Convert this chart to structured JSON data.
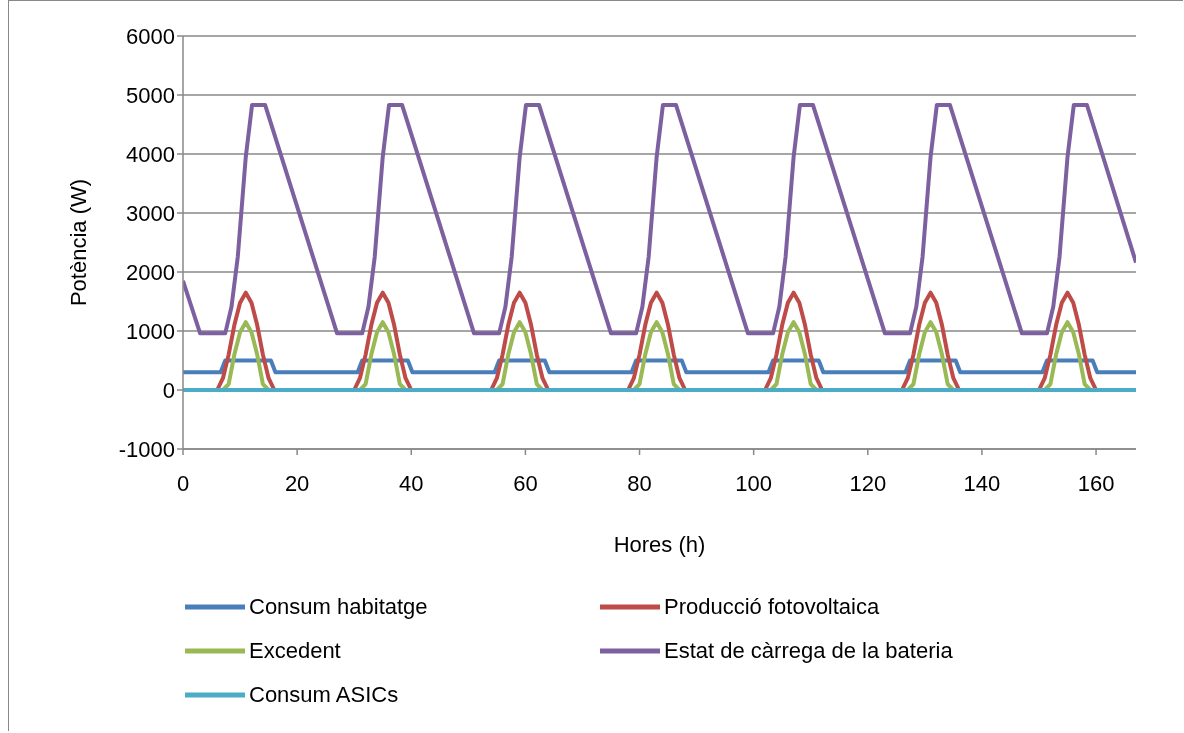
{
  "chart_data": {
    "type": "line",
    "xlabel": "Hores (h)",
    "ylabel": "Potència (W)",
    "xlim": [
      0,
      167
    ],
    "xticks": [
      0,
      20,
      40,
      60,
      80,
      100,
      120,
      140,
      160
    ],
    "ylim": [
      -1000,
      6000
    ],
    "yticks": [
      -1000,
      0,
      1000,
      2000,
      3000,
      4000,
      5000,
      6000
    ],
    "grid": "y",
    "legend": "bottom",
    "series": [
      {
        "name": "Consum habitatge",
        "color": "#4a7ebb",
        "x": [
          0,
          6.6,
          7.4,
          15.4,
          16.2,
          30.6,
          31.4,
          39.4,
          40.2,
          54.6,
          55.4,
          63.4,
          64.2,
          78.6,
          79.4,
          87.4,
          88.2,
          102.6,
          103.4,
          111.4,
          112.2,
          126.6,
          127.4,
          135.4,
          136.2,
          150.6,
          151.4,
          159.4,
          160.2,
          167
        ],
        "values": [
          300,
          300,
          500,
          500,
          300,
          300,
          500,
          500,
          300,
          300,
          500,
          500,
          300,
          300,
          500,
          500,
          300,
          300,
          500,
          500,
          300,
          300,
          500,
          500,
          300,
          300,
          500,
          500,
          300,
          300
        ]
      },
      {
        "name": "Producció fotovoltaica",
        "color": "#be4b48",
        "x": [
          0,
          6,
          7,
          8,
          9,
          10,
          11,
          12,
          13,
          14,
          15,
          16,
          30,
          31,
          32,
          33,
          34,
          35,
          36,
          37,
          38,
          39,
          40,
          54,
          55,
          56,
          57,
          58,
          59,
          60,
          61,
          62,
          63,
          64,
          78,
          79,
          80,
          81,
          82,
          83,
          84,
          85,
          86,
          87,
          88,
          102,
          103,
          104,
          105,
          106,
          107,
          108,
          109,
          110,
          111,
          112,
          126,
          127,
          128,
          129,
          130,
          131,
          132,
          133,
          134,
          135,
          136,
          150,
          151,
          152,
          153,
          154,
          155,
          156,
          157,
          158,
          159,
          160,
          167
        ],
        "values": [
          0,
          0,
          200,
          600,
          1100,
          1480,
          1650,
          1480,
          1100,
          600,
          200,
          0,
          0,
          200,
          600,
          1100,
          1480,
          1650,
          1480,
          1100,
          600,
          200,
          0,
          0,
          200,
          600,
          1100,
          1480,
          1650,
          1480,
          1100,
          600,
          200,
          0,
          0,
          200,
          600,
          1100,
          1480,
          1650,
          1480,
          1100,
          600,
          200,
          0,
          0,
          200,
          600,
          1100,
          1480,
          1650,
          1480,
          1100,
          600,
          200,
          0,
          0,
          200,
          600,
          1100,
          1480,
          1650,
          1480,
          1100,
          600,
          200,
          0,
          0,
          200,
          600,
          1100,
          1480,
          1650,
          1480,
          1100,
          600,
          200,
          0,
          0
        ]
      },
      {
        "name": "Excedent",
        "color": "#98b954",
        "x": [
          0,
          7,
          8,
          9,
          10,
          11,
          12,
          13,
          14,
          15,
          31,
          32,
          33,
          34,
          35,
          36,
          37,
          38,
          39,
          55,
          56,
          57,
          58,
          59,
          60,
          61,
          62,
          63,
          79,
          80,
          81,
          82,
          83,
          84,
          85,
          86,
          87,
          103,
          104,
          105,
          106,
          107,
          108,
          109,
          110,
          111,
          127,
          128,
          129,
          130,
          131,
          132,
          133,
          134,
          135,
          151,
          152,
          153,
          154,
          155,
          156,
          157,
          158,
          159,
          167
        ],
        "values": [
          0,
          0,
          100,
          600,
          980,
          1150,
          980,
          600,
          100,
          0,
          0,
          100,
          600,
          980,
          1150,
          980,
          600,
          100,
          0,
          0,
          100,
          600,
          980,
          1150,
          980,
          600,
          100,
          0,
          0,
          100,
          600,
          980,
          1150,
          980,
          600,
          100,
          0,
          0,
          100,
          600,
          980,
          1150,
          980,
          600,
          100,
          0,
          0,
          100,
          600,
          980,
          1150,
          980,
          600,
          100,
          0,
          0,
          100,
          600,
          980,
          1150,
          980,
          600,
          100,
          0,
          0
        ]
      },
      {
        "name": "Estat de càrrega de la bateria",
        "color": "#7d60a0",
        "x": [
          0,
          3,
          7.4,
          8.5,
          9.6,
          11,
          12.1,
          14.4,
          27,
          31.4,
          32.5,
          33.6,
          35,
          36.1,
          38.4,
          51,
          55.4,
          56.5,
          57.6,
          59,
          60.1,
          62.4,
          75,
          79.4,
          80.5,
          81.6,
          83,
          84.1,
          86.4,
          99,
          103.4,
          104.5,
          105.6,
          107,
          108.1,
          110.4,
          123,
          127.4,
          128.5,
          129.6,
          131,
          132.1,
          134.4,
          147,
          151.4,
          152.5,
          153.6,
          155,
          156.1,
          158.4,
          167
        ],
        "values": [
          1850,
          960,
          960,
          1410,
          2260,
          3950,
          4830,
          4830,
          960,
          960,
          1410,
          2260,
          3950,
          4830,
          4830,
          960,
          960,
          1410,
          2260,
          3950,
          4830,
          4830,
          960,
          960,
          1410,
          2260,
          3950,
          4830,
          4830,
          960,
          960,
          1410,
          2260,
          3950,
          4830,
          4830,
          960,
          960,
          1410,
          2260,
          3950,
          4830,
          4830,
          960,
          960,
          1410,
          2260,
          3950,
          4830,
          4830,
          2160
        ]
      },
      {
        "name": "Consum ASICs",
        "color": "#4bacc6",
        "x": [
          0,
          167
        ],
        "values": [
          0,
          0
        ]
      }
    ]
  }
}
